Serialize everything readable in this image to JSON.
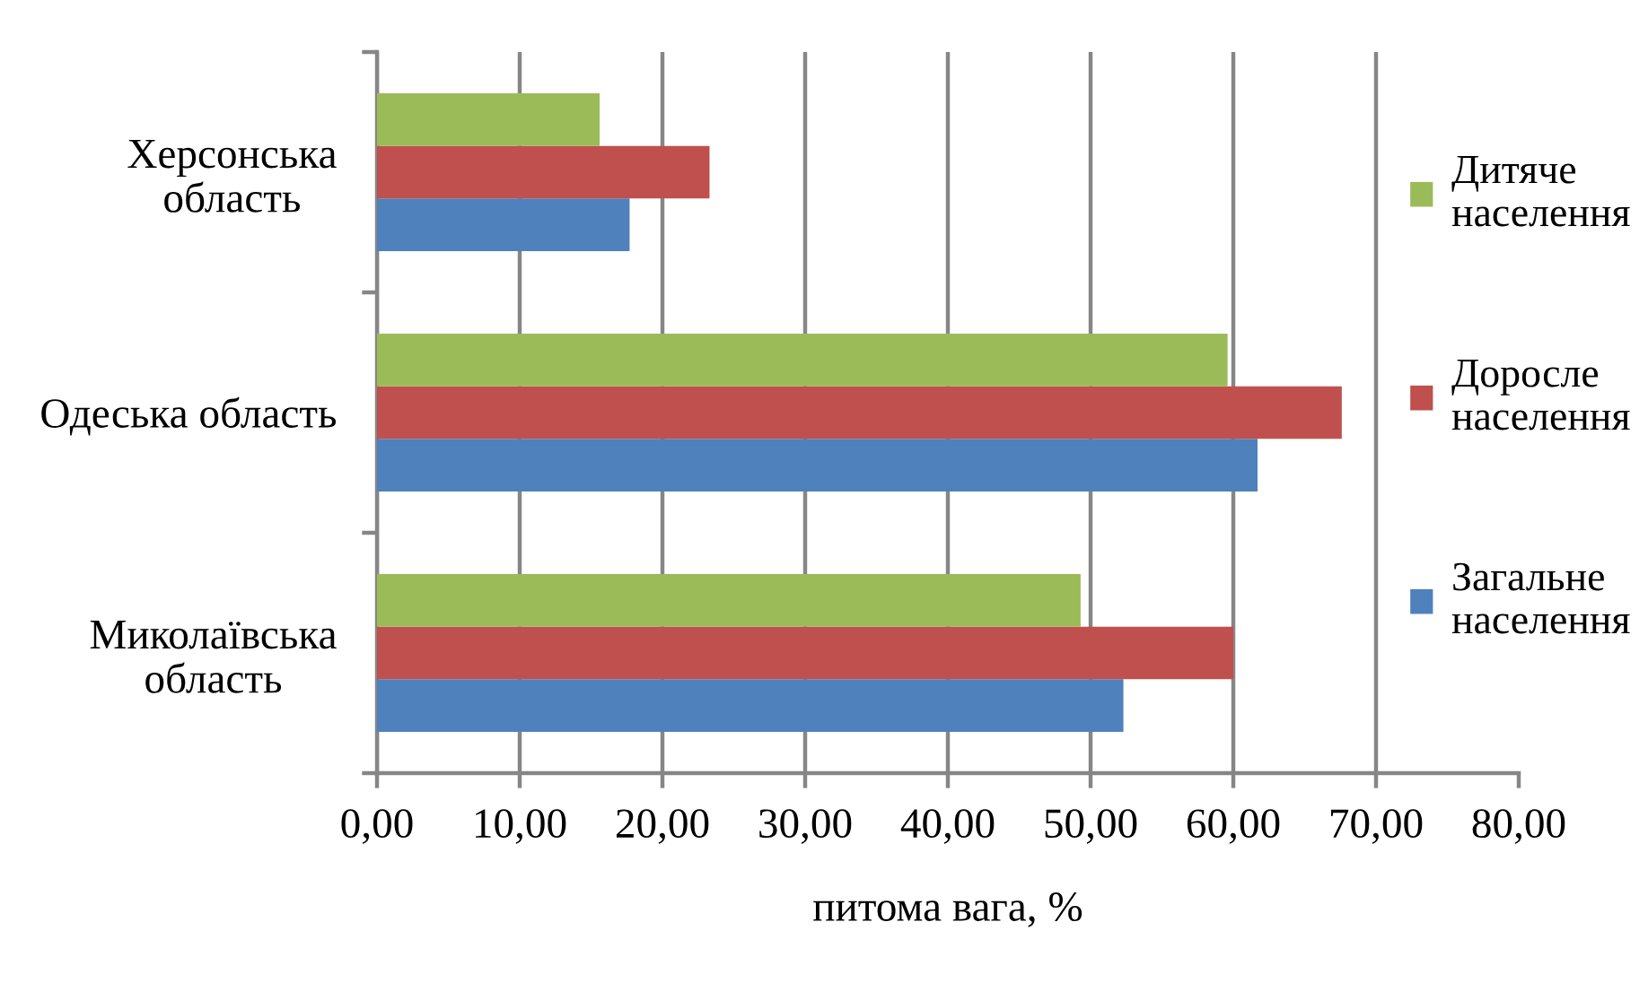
{
  "chart_data": {
    "type": "bar",
    "orientation": "horizontal",
    "categories": [
      "Херсонська область",
      "Одеська область",
      "Миколаївська область"
    ],
    "series": [
      {
        "name": "Загальне населення",
        "color": "#4f81bd",
        "values": [
          17.7,
          61.7,
          52.3
        ]
      },
      {
        "name": "Доросле населення",
        "color": "#c0504d",
        "values": [
          23.3,
          67.6,
          60.0
        ]
      },
      {
        "name": "Дитяче населення",
        "color": "#9bbb59",
        "values": [
          15.6,
          59.6,
          49.3
        ]
      }
    ],
    "xlabel": "питома вага, %",
    "xlim": [
      0,
      80
    ],
    "xticks": [
      {
        "value": 0,
        "label": "0,00"
      },
      {
        "value": 10,
        "label": "10,00"
      },
      {
        "value": 20,
        "label": "20,00"
      },
      {
        "value": 30,
        "label": "30,00"
      },
      {
        "value": 40,
        "label": "40,00"
      },
      {
        "value": 50,
        "label": "50,00"
      },
      {
        "value": 60,
        "label": "60,00"
      },
      {
        "value": 70,
        "label": "70,00"
      },
      {
        "value": 80,
        "label": "80,00"
      }
    ],
    "grid": "x",
    "legend": "right"
  }
}
